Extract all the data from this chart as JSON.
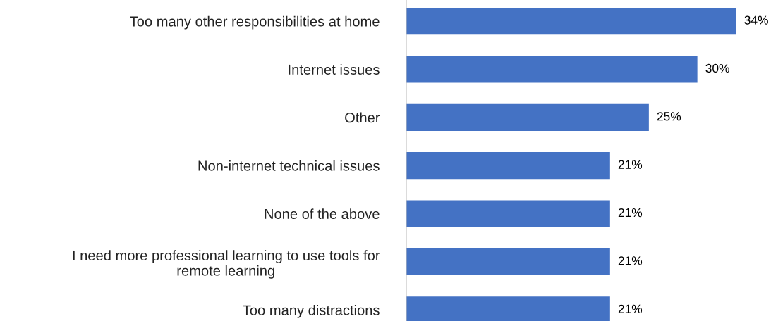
{
  "chart_data": {
    "type": "bar",
    "orientation": "horizontal",
    "categories": [
      "Too many other responsibilities at home",
      "Internet issues",
      "Other",
      "Non-internet technical issues",
      "None of the above",
      "I need more professional learning to use tools for\nremote learning",
      "Too many distractions"
    ],
    "values": [
      34,
      30,
      25,
      21,
      21,
      21,
      21
    ],
    "value_labels": [
      "34%",
      "30%",
      "25%",
      "21%",
      "21%",
      "21%",
      "21%"
    ],
    "color": "#4472c4"
  }
}
